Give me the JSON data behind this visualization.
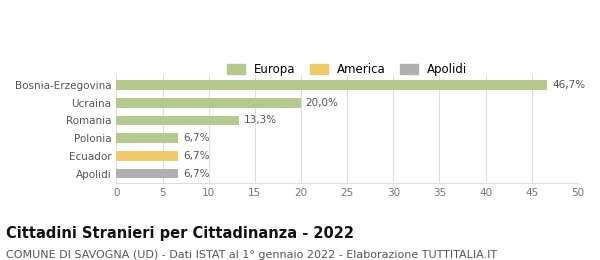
{
  "categories": [
    "Apolidi",
    "Ecuador",
    "Polonia",
    "Romania",
    "Ucraina",
    "Bosnia-Erzegovina"
  ],
  "values": [
    6.7,
    6.7,
    6.7,
    13.3,
    20.0,
    46.7
  ],
  "labels": [
    "6,7%",
    "6,7%",
    "6,7%",
    "13,3%",
    "20,0%",
    "46,7%"
  ],
  "bar_colors": [
    "#b0b0b0",
    "#f0c96a",
    "#b5c98e",
    "#b5c98e",
    "#b5c98e",
    "#b5c98e"
  ],
  "legend_items": [
    {
      "label": "Europa",
      "color": "#b5c98e"
    },
    {
      "label": "America",
      "color": "#f0c96a"
    },
    {
      "label": "Apolidi",
      "color": "#b0b0b0"
    }
  ],
  "xlim": [
    0,
    50
  ],
  "xticks": [
    0,
    5,
    10,
    15,
    20,
    25,
    30,
    35,
    40,
    45,
    50
  ],
  "title": "Cittadini Stranieri per Cittadinanza - 2022",
  "subtitle": "COMUNE DI SAVOGNA (UD) - Dati ISTAT al 1° gennaio 2022 - Elaborazione TUTTITALIA.IT",
  "title_fontsize": 10.5,
  "subtitle_fontsize": 8,
  "label_fontsize": 7.5,
  "tick_fontsize": 7.5,
  "legend_fontsize": 8.5,
  "background_color": "#ffffff",
  "grid_color": "#dddddd"
}
